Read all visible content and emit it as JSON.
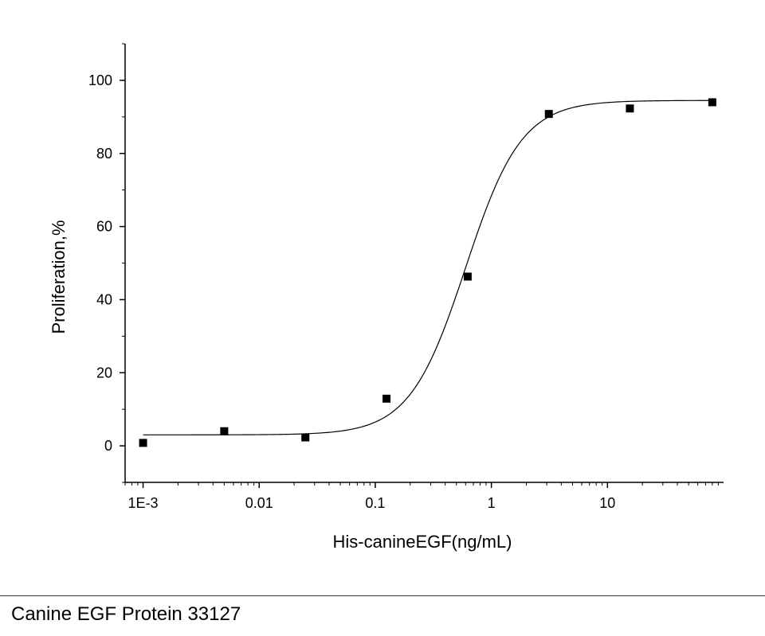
{
  "caption": "Canine EGF Protein 33127",
  "chart_data": {
    "type": "scatter",
    "title": "",
    "xlabel": "His-canineEGF(ng/mL)",
    "ylabel": "Proliferation,%",
    "x_scale": "log",
    "xlim": [
      0.0007,
      100
    ],
    "ylim": [
      -10,
      110
    ],
    "x_ticks": [
      0.001,
      0.01,
      0.1,
      1,
      10
    ],
    "x_tick_labels": [
      "1E-3",
      "0.01",
      "0.1",
      "1",
      "10"
    ],
    "y_ticks": [
      0,
      20,
      40,
      60,
      80,
      100
    ],
    "y_tick_labels": [
      "0",
      "20",
      "40",
      "60",
      "80",
      "100"
    ],
    "grid": false,
    "series": [
      {
        "marker": "square",
        "color": "#000000",
        "x": [
          0.001,
          0.005,
          0.025,
          0.125,
          0.625,
          3.125,
          15.6,
          80
        ],
        "y": [
          0.8,
          4.0,
          2.3,
          12.9,
          46.3,
          90.8,
          92.3,
          94.0
        ]
      }
    ],
    "fit_curve": {
      "model": "4PL",
      "bottom": 3.0,
      "top": 94.5,
      "ec50": 0.6,
      "hill": 1.8,
      "color": "#000000"
    }
  }
}
